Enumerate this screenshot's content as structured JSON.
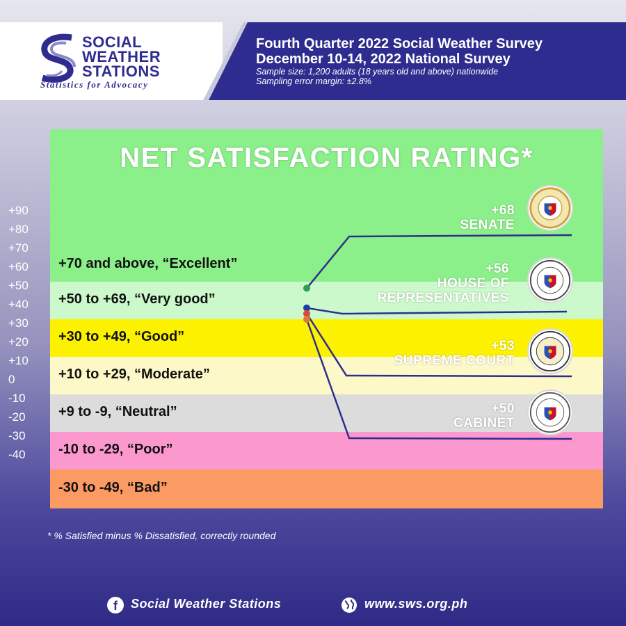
{
  "header": {
    "org_line1": "SOCIAL",
    "org_line2": "WEATHER",
    "org_line3": "STATIONS",
    "tagline": "Statistics for Advocacy",
    "survey_title": "Fourth Quarter 2022 Social Weather Survey",
    "survey_dates": "December 10-14, 2022 National Survey",
    "sample_size": "Sample size: 1,200 adults (18 years old and above) nationwide",
    "error_margin": "Sampling error margin: ±2.8%"
  },
  "colors": {
    "brand": "#2e2d8f",
    "excellent": "#8cf08a",
    "very_good": "#ccf9cc",
    "good": "#fcf200",
    "moderate": "#fdf8c8",
    "neutral": "#dcdcdc",
    "poor": "#fb98ce",
    "bad": "#fb9a62"
  },
  "chart_data": {
    "type": "line",
    "title": "NET SATISFACTION RATING*",
    "footnote": "* % Satisfied minus % Dissatisfied, correctly rounded",
    "y_ticks": [
      "+90",
      "+80",
      "+70",
      "+60",
      "+50",
      "+40",
      "+30",
      "+20",
      "+10",
      "0",
      "-10",
      "-20",
      "-30",
      "-40"
    ],
    "bands": [
      {
        "label": "+70 and above, “Excellent”",
        "from": 70,
        "to": 100,
        "color": "#8cf08a"
      },
      {
        "label": "+50 to +69, “Very good”",
        "from": 50,
        "to": 70,
        "color": "#ccf9cc"
      },
      {
        "label": "+30 to +49, “Good”",
        "from": 30,
        "to": 50,
        "color": "#fcf200"
      },
      {
        "label": "+10 to +29, “Moderate”",
        "from": 10,
        "to": 30,
        "color": "#fdf8c8"
      },
      {
        "label": "+9 to -9, “Neutral”",
        "from": -10,
        "to": 10,
        "color": "#dcdcdc"
      },
      {
        "label": "-10 to -29, “Poor”",
        "from": -30,
        "to": -10,
        "color": "#fb98ce"
      },
      {
        "label": "-30 to -49, “Bad”",
        "from": -50,
        "to": -30,
        "color": "#fb9a62"
      }
    ],
    "series": [
      {
        "name": "SENATE",
        "value": "+68",
        "y": 68,
        "color": "#2e9e4a"
      },
      {
        "name": "HOUSE OF REPRESENTATIVES",
        "value": "+56",
        "y": 56,
        "color": "#1a3fa8"
      },
      {
        "name": "SUPREME COURT",
        "value": "+53",
        "y": 53,
        "color": "#d84a3a"
      },
      {
        "name": "CABINET",
        "value": "+50",
        "y": 50,
        "color": "#e07a30"
      }
    ]
  },
  "footer": {
    "facebook": "Social Weather Stations",
    "website": "www.sws.org.ph"
  }
}
